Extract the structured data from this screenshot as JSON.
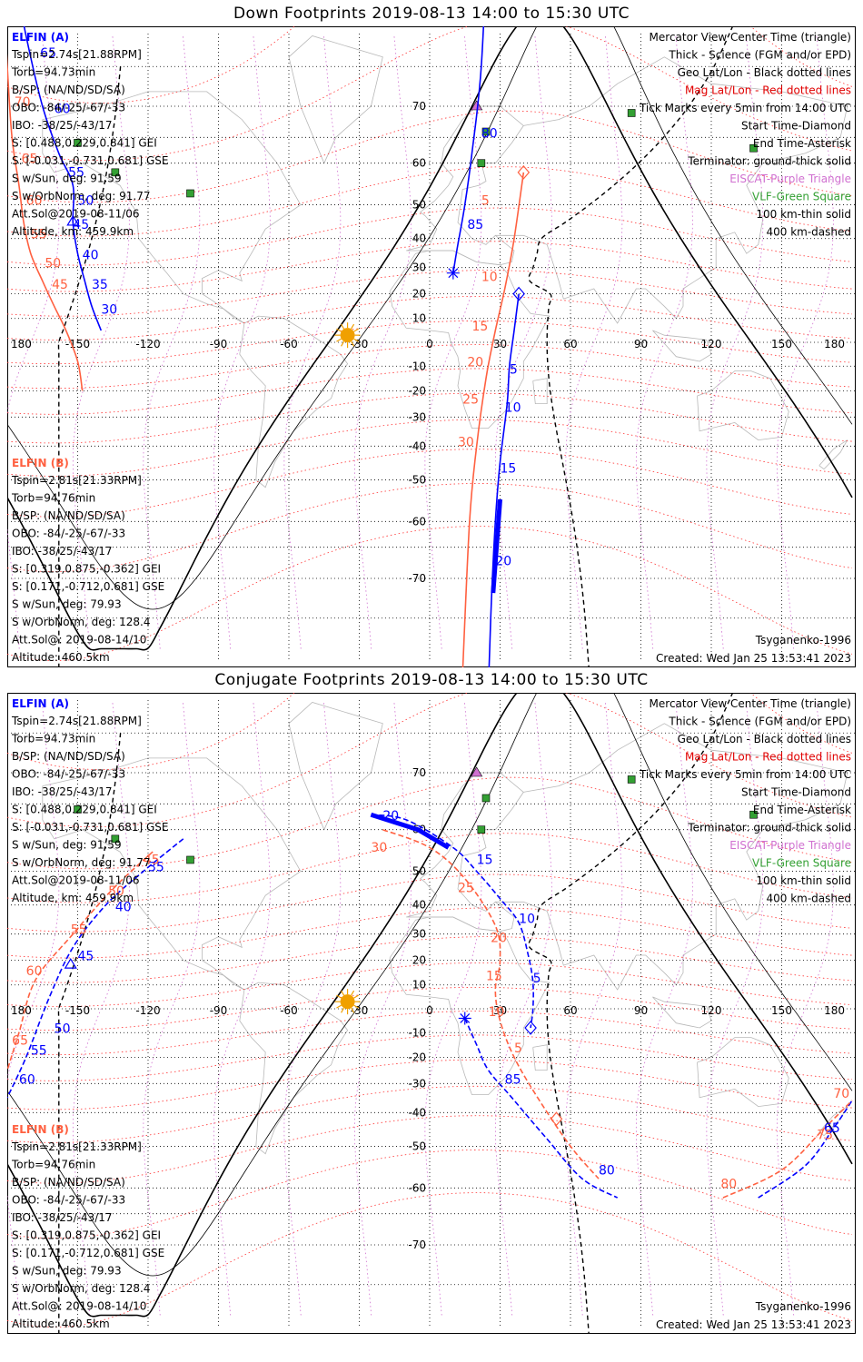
{
  "panels": [
    {
      "title": "Down Footprints 2019-08-13 14:00 to 15:30 UTC",
      "sc_a": {
        "name": "ELFIN (A)",
        "lines": [
          "Tspin=2.74s[21.88RPM]",
          "Torb=94.73min",
          "B/SP: (NA/ND/SD/SA)",
          "OBO: -84/-25/-67/-33",
          "IBO: -38/25/-43/17",
          "S: [0.488,0.229,0.841] GEI",
          "S: [-0.031,-0.731,0.681] GSE",
          "S w/Sun, deg: 91.59",
          "S w/OrbNorm, deg: 91.77",
          "Att.Sol@2019-08-11/06",
          "Altitude, km: 459.9km"
        ]
      },
      "sc_b": {
        "name": "ELFIN (B)",
        "lines": [
          "Tspin=2.81s[21.33RPM]",
          "Torb=94.76min",
          "B/SP: (NA/ND/SD/SA)",
          "OBO: -84/-25/-67/-33",
          "IBO: -38/25/-43/17",
          "S: [0.319,0.875,-0.362] GEI",
          "S: [0.171,-0.712,0.681] GSE",
          "S w/Sun, deg: 79.93",
          "S w/OrbNorm, deg: 128.4",
          "Att.Sol@: 2019-08-14/10",
          "Altitude: 460.5km"
        ]
      },
      "model": "Tsyganenko-1996",
      "created": "Created: Wed Jan 25 13:53:41 2023",
      "track_a_labels": [
        {
          "t": "70",
          "lon": -178,
          "lat": 80
        },
        {
          "t": "65",
          "lon": -166,
          "lat": 76
        },
        {
          "t": "60",
          "lon": -160,
          "lat": 69
        },
        {
          "t": "55",
          "lon": -154,
          "lat": 57
        },
        {
          "t": "50",
          "lon": -150,
          "lat": 50
        },
        {
          "t": "45",
          "lon": -152,
          "lat": 43
        },
        {
          "t": "40",
          "lon": -148,
          "lat": 33
        },
        {
          "t": "35",
          "lon": -144,
          "lat": 22
        },
        {
          "t": "30",
          "lon": -140,
          "lat": 12
        },
        {
          "t": "80",
          "lon": 22,
          "lat": 65
        },
        {
          "t": "85",
          "lon": 16,
          "lat": 43
        },
        {
          "t": "5",
          "lon": 34,
          "lat": -13
        },
        {
          "t": "10",
          "lon": 32,
          "lat": -28
        },
        {
          "t": "15",
          "lon": 30,
          "lat": -48
        },
        {
          "t": "20",
          "lon": 28,
          "lat": -68
        }
      ],
      "track_b_labels": [
        {
          "t": "80",
          "lon": -183,
          "lat": 82
        },
        {
          "t": "70",
          "lon": -177,
          "lat": 70
        },
        {
          "t": "65",
          "lon": -174,
          "lat": 60
        },
        {
          "t": "60",
          "lon": -172,
          "lat": 50
        },
        {
          "t": "55",
          "lon": -170,
          "lat": 40
        },
        {
          "t": "50",
          "lon": -164,
          "lat": 30
        },
        {
          "t": "45",
          "lon": -161,
          "lat": 22
        },
        {
          "t": "5",
          "lon": 22,
          "lat": 50
        },
        {
          "t": "10",
          "lon": 22,
          "lat": 25
        },
        {
          "t": "15",
          "lon": 18,
          "lat": 5
        },
        {
          "t": "20",
          "lon": 16,
          "lat": -10
        },
        {
          "t": "25",
          "lon": 14,
          "lat": -25
        },
        {
          "t": "30",
          "lon": 12,
          "lat": -40
        }
      ]
    },
    {
      "title": "Conjugate Footprints 2019-08-13 14:00 to 15:30 UTC",
      "sc_a": {
        "name": "ELFIN (A)",
        "lines": [
          "Tspin=2.74s[21.88RPM]",
          "Torb=94.73min",
          "B/SP: (NA/ND/SD/SA)",
          "OBO: -84/-25/-67/-33",
          "IBO: -38/25/-43/17",
          "S: [0.488,0.229,0.841] GEI",
          "S: [-0.031,-0.731,0.681] GSE",
          "S w/Sun, deg: 91.59",
          "S w/OrbNorm, deg: 91.77",
          "Att.Sol@2019-08-11/06",
          "Altitude, km: 459.9km"
        ]
      },
      "sc_b": {
        "name": "ELFIN (B)",
        "lines": [
          "Tspin=2.81s[21.33RPM]",
          "Torb=94.76min",
          "B/SP: (NA/ND/SD/SA)",
          "OBO: -84/-25/-67/-33",
          "IBO: -38/25/-43/17",
          "S: [0.319,0.875,-0.362] GEI",
          "S: [0.171,-0.712,0.681] GSE",
          "S w/Sun, deg: 79.93",
          "S w/OrbNorm, deg: 128.4",
          "Att.Sol@: 2019-08-14/10",
          "Altitude: 460.5km"
        ]
      },
      "model": "Tsyganenko-1996",
      "created": "Created: Wed Jan 25 13:53:41 2023",
      "track_a_labels": [
        {
          "t": "20",
          "lon": -20,
          "lat": 62
        },
        {
          "t": "15",
          "lon": 20,
          "lat": 52
        },
        {
          "t": "10",
          "lon": 38,
          "lat": 34
        },
        {
          "t": "5",
          "lon": 44,
          "lat": 11
        },
        {
          "t": "85",
          "lon": 32,
          "lat": -30
        },
        {
          "t": "80",
          "lon": 72,
          "lat": -57
        },
        {
          "t": "35",
          "lon": -120,
          "lat": 50
        },
        {
          "t": "40",
          "lon": -134,
          "lat": 38
        },
        {
          "t": "45",
          "lon": -150,
          "lat": 20
        },
        {
          "t": "50",
          "lon": -160,
          "lat": -10
        },
        {
          "t": "55",
          "lon": -170,
          "lat": -19
        },
        {
          "t": "60",
          "lon": -175,
          "lat": -30
        },
        {
          "t": "65",
          "lon": 168,
          "lat": -46
        }
      ],
      "track_b_labels": [
        {
          "t": "30",
          "lon": -25,
          "lat": 55
        },
        {
          "t": "25",
          "lon": 12,
          "lat": 44
        },
        {
          "t": "20",
          "lon": 26,
          "lat": 27
        },
        {
          "t": "15",
          "lon": 24,
          "lat": 12
        },
        {
          "t": "10",
          "lon": 25,
          "lat": -3
        },
        {
          "t": "5",
          "lon": 36,
          "lat": -18
        },
        {
          "t": "45",
          "lon": -122,
          "lat": 52
        },
        {
          "t": "50",
          "lon": -137,
          "lat": 43
        },
        {
          "t": "55",
          "lon": -153,
          "lat": 30
        },
        {
          "t": "60",
          "lon": -172,
          "lat": 14
        },
        {
          "t": "65",
          "lon": -178,
          "lat": -15
        },
        {
          "t": "70",
          "lon": 172,
          "lat": -35
        },
        {
          "t": "75",
          "lon": 165,
          "lat": -48
        },
        {
          "t": "80",
          "lon": 124,
          "lat": -60
        }
      ]
    }
  ],
  "legend": [
    {
      "text": "Mercator View Center Time (triangle)",
      "color": "#000000"
    },
    {
      "text": "Thick - Science (FGM and/or EPD)",
      "color": "#000000"
    },
    {
      "text": "Geo Lat/Lon - Black dotted lines",
      "color": "#000000"
    },
    {
      "text": "Mag Lat/Lon - Red dotted lines",
      "color": "#e00000"
    },
    {
      "text": "Tick Marks every 5min from 14:00 UTC",
      "color": "#000000"
    },
    {
      "text": "Start Time-Diamond",
      "color": "#000000"
    },
    {
      "text": "End Time-Asterisk",
      "color": "#000000"
    },
    {
      "text": "Terminator: ground-thick solid",
      "color": "#000000"
    },
    {
      "text": "EISCAT-Purple Triangle",
      "color": "#d070d0"
    },
    {
      "text": "VLF-Green Square",
      "color": "#33a033"
    },
    {
      "text": "100 km-thin solid",
      "color": "#000000"
    },
    {
      "text": "400 km-dashed",
      "color": "#000000"
    }
  ],
  "colors": {
    "sc_a": "#0000ff",
    "sc_b": "#ff6040",
    "mag_grid": "#ff3030",
    "geo_grid": "#000000",
    "eiscat": "#d070d0",
    "vlf": "#33a033",
    "sun": "#f0a000"
  },
  "lon_ticks": [
    "180",
    "-150",
    "-120",
    "-90",
    "-60",
    "-30",
    "0",
    "30",
    "60",
    "90",
    "120",
    "150",
    "180"
  ],
  "lat_ticks": [
    "70",
    "60",
    "50",
    "40",
    "30",
    "20",
    "10",
    "0",
    "-10",
    "-20",
    "-30",
    "-40",
    "-50",
    "-60",
    "-70"
  ]
}
